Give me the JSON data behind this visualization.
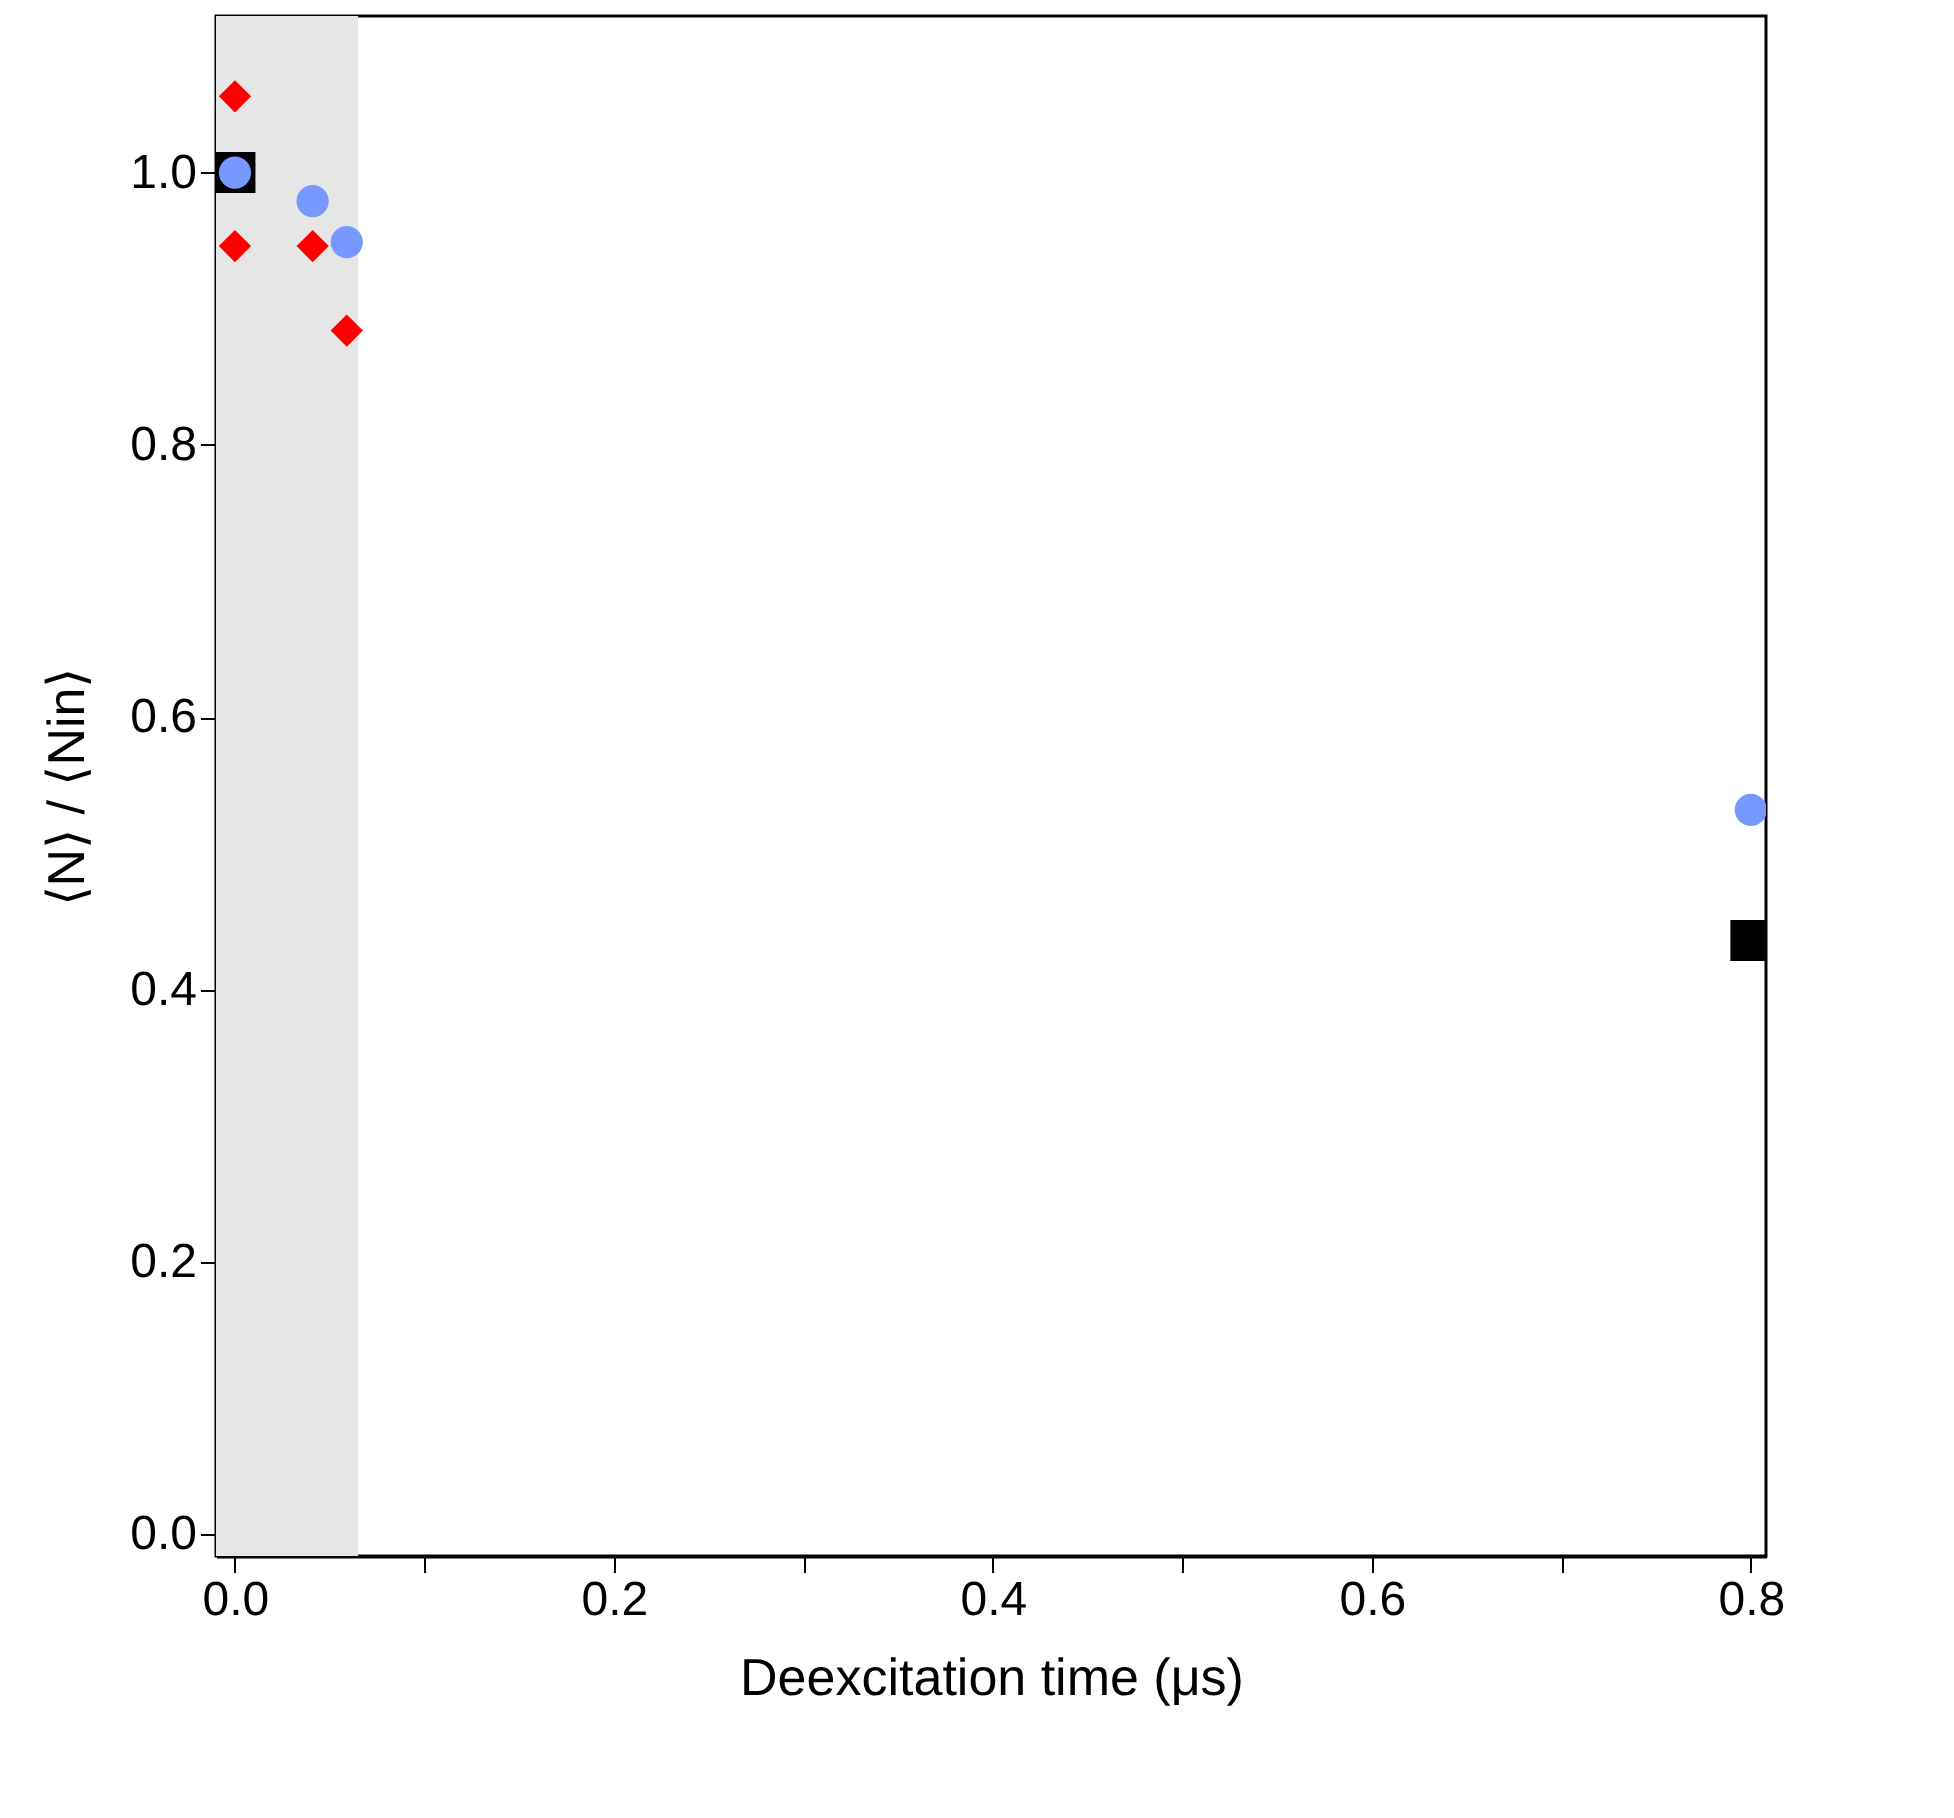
{
  "chart_data": {
    "type": "scatter",
    "xlabel": "Deexcitation time (μs)",
    "ylabel": "⟨N⟩ / ⟨Nin⟩",
    "xlim": [
      -0.01,
      0.808
    ],
    "ylim": [
      -0.016,
      1.115
    ],
    "xticks": [
      {
        "value": 0,
        "label": "0.0"
      },
      {
        "value": 0.1,
        "label": null
      },
      {
        "value": 0.2,
        "label": "0.2"
      },
      {
        "value": 0.3,
        "label": null
      },
      {
        "value": 0.4,
        "label": "0.4"
      },
      {
        "value": 0.5,
        "label": null
      },
      {
        "value": 0.6,
        "label": "0.6"
      },
      {
        "value": 0.7,
        "label": null
      },
      {
        "value": 0.8,
        "label": "0.8"
      }
    ],
    "yticks": [
      {
        "value": 0,
        "label": "0.0"
      },
      0.2,
      0.4,
      0.6,
      0.8,
      {
        "value": 1,
        "label": "1.0"
      }
    ],
    "grid": false,
    "bands": [
      {
        "axis": "x",
        "from": -0.01,
        "to": 0.065,
        "color": "#e6e6e6"
      }
    ],
    "series": [
      {
        "color": "#000000",
        "marker": "square",
        "x": [
          0,
          0.8
        ],
        "values": [
          1.0,
          0.436
        ]
      },
      {
        "color": "#7799ff",
        "marker": "circle",
        "x": [
          0,
          0.041,
          0.059,
          0.8
        ],
        "values": [
          1.0,
          0.979,
          0.949,
          0.532
        ]
      },
      {
        "color": "#ff0000",
        "marker": "diamond",
        "x": [
          0,
          0,
          0.041,
          0.059
        ],
        "values": [
          1.056,
          0.946,
          0.946,
          0.884
        ]
      }
    ]
  }
}
